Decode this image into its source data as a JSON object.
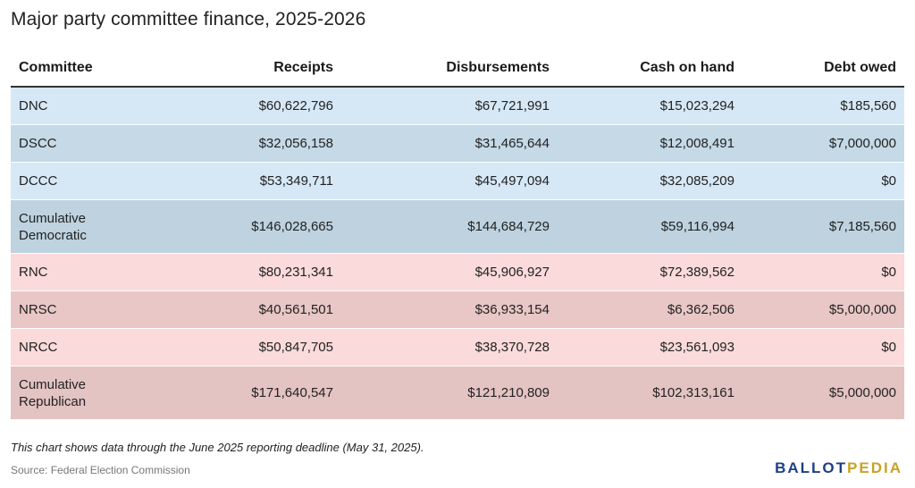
{
  "chart_data": {
    "type": "table",
    "title": "Major party committee finance, 2025-2026",
    "columns": [
      "Committee",
      "Receipts",
      "Disbursements",
      "Cash on hand",
      "Debt owed"
    ],
    "rows": [
      {
        "party": "dem",
        "committee": "DNC",
        "receipts": "$60,622,796",
        "disbursements": "$67,721,991",
        "cash": "$15,023,294",
        "debt": "$185,560"
      },
      {
        "party": "dem",
        "committee": "DSCC",
        "receipts": "$32,056,158",
        "disbursements": "$31,465,644",
        "cash": "$12,008,491",
        "debt": "$7,000,000"
      },
      {
        "party": "dem",
        "committee": "DCCC",
        "receipts": "$53,349,711",
        "disbursements": "$45,497,094",
        "cash": "$32,085,209",
        "debt": "$0"
      },
      {
        "party": "dem",
        "committee": "Cumulative Democratic",
        "receipts": "$146,028,665",
        "disbursements": "$144,684,729",
        "cash": "$59,116,994",
        "debt": "$7,185,560"
      },
      {
        "party": "rep",
        "committee": "RNC",
        "receipts": "$80,231,341",
        "disbursements": "$45,906,927",
        "cash": "$72,389,562",
        "debt": "$0"
      },
      {
        "party": "rep",
        "committee": "NRSC",
        "receipts": "$40,561,501",
        "disbursements": "$36,933,154",
        "cash": "$6,362,506",
        "debt": "$5,000,000"
      },
      {
        "party": "rep",
        "committee": "NRCC",
        "receipts": "$50,847,705",
        "disbursements": "$38,370,728",
        "cash": "$23,561,093",
        "debt": "$0"
      },
      {
        "party": "rep",
        "committee": "Cumulative Republican",
        "receipts": "$171,640,547",
        "disbursements": "$121,210,809",
        "cash": "$102,313,161",
        "debt": "$5,000,000"
      }
    ],
    "colors": {
      "dem_light": "#d6e8f6",
      "dem_dark": "#c5d9e6",
      "rep_light": "#fadada",
      "rep_dark": "#e9c7c7"
    }
  },
  "footer": {
    "note": "This chart shows data through the June 2025 reporting deadline (May 31, 2025).",
    "source": "Source: Federal Election Commission",
    "logo_part1": "BALLOT",
    "logo_part2": "PEDIA"
  }
}
